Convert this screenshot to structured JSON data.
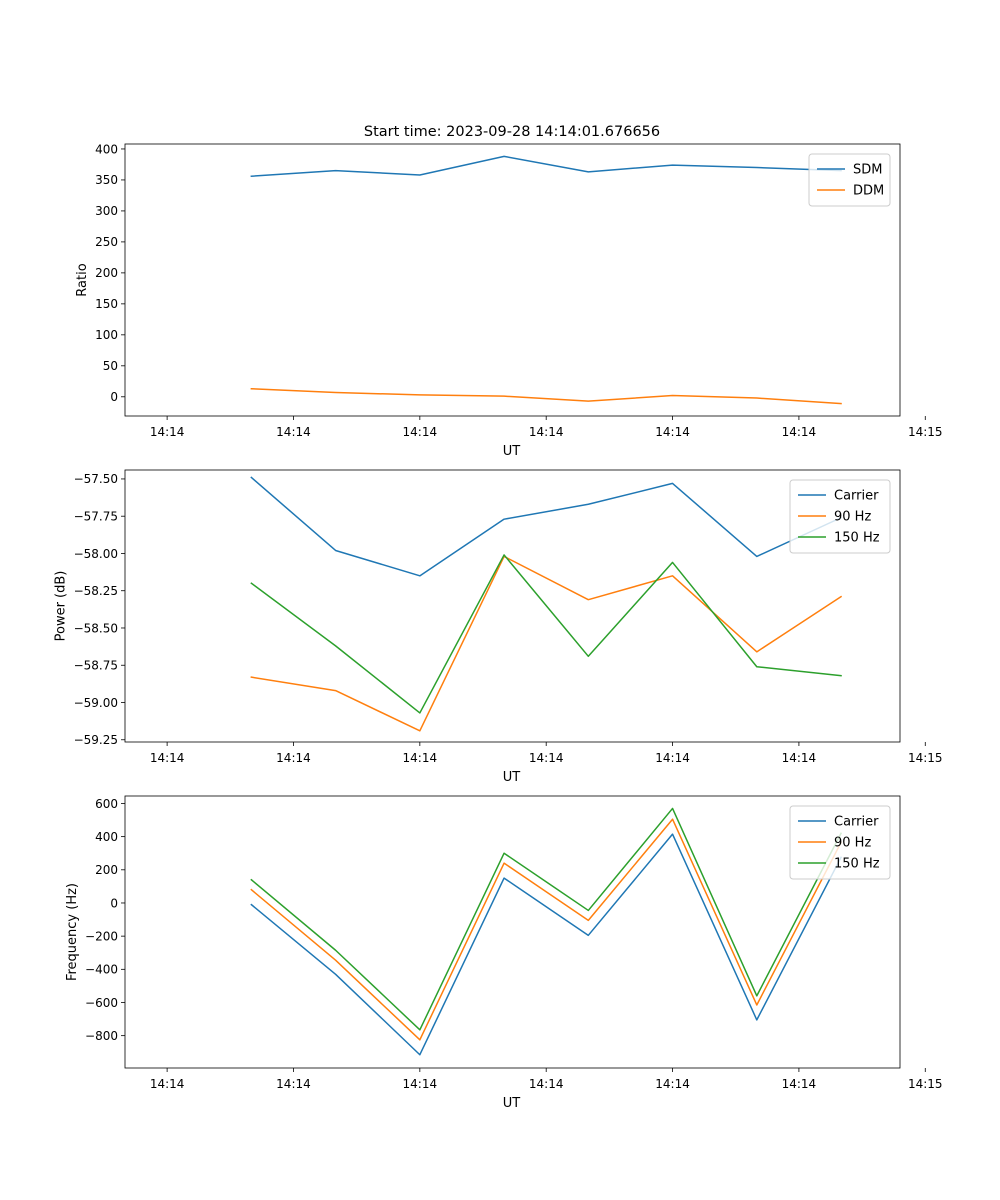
{
  "figure": {
    "title": "Start time: 2023-09-28 14:14:01.676656"
  },
  "chart_data": [
    {
      "type": "line",
      "title": "Start time: 2023-09-28 14:14:01.676656",
      "xlabel": "UT",
      "ylabel": "Ratio",
      "xlim": [
        -0.5,
        8.7
      ],
      "ylim": [
        -31,
        408
      ],
      "x": [
        1,
        2,
        3,
        4,
        5,
        6,
        7,
        8
      ],
      "x_ticks": [
        0,
        1.5,
        3,
        4.5,
        6,
        7.5,
        9
      ],
      "x_tick_labels": [
        "14:14",
        "14:14",
        "14:14",
        "14:14",
        "14:14",
        "14:14",
        "14:15"
      ],
      "y_ticks": [
        0,
        50,
        100,
        150,
        200,
        250,
        300,
        350,
        400
      ],
      "y_tick_labels": [
        "0",
        "50",
        "100",
        "150",
        "200",
        "250",
        "300",
        "350",
        "400"
      ],
      "legend": "top-right",
      "series": [
        {
          "name": "SDM",
          "color": "#1f77b4",
          "values": [
            356,
            365,
            358,
            388,
            363,
            374,
            370,
            365
          ]
        },
        {
          "name": "DDM",
          "color": "#ff7f0e",
          "values": [
            13,
            7,
            3,
            1,
            -7,
            2,
            -2,
            -11
          ]
        }
      ]
    },
    {
      "type": "line",
      "title": "",
      "xlabel": "UT",
      "ylabel": "Power (dB)",
      "xlim": [
        -0.5,
        8.7
      ],
      "ylim": [
        -59.265,
        -57.44
      ],
      "x": [
        1,
        2,
        3,
        4,
        5,
        6,
        7,
        8
      ],
      "x_ticks": [
        0,
        1.5,
        3,
        4.5,
        6,
        7.5,
        9
      ],
      "x_tick_labels": [
        "14:14",
        "14:14",
        "14:14",
        "14:14",
        "14:14",
        "14:14",
        "14:15"
      ],
      "y_ticks": [
        -57.5,
        -57.75,
        -58.0,
        -58.25,
        -58.5,
        -58.75,
        -59.0,
        -59.25
      ],
      "y_tick_labels": [
        "−57.50",
        "−57.75",
        "−58.00",
        "−58.25",
        "−58.50",
        "−58.75",
        "−59.00",
        "−59.25"
      ],
      "legend": "top-right",
      "series": [
        {
          "name": "Carrier",
          "color": "#1f77b4",
          "values": [
            -57.49,
            -57.98,
            -58.15,
            -57.77,
            -57.67,
            -57.53,
            -58.02,
            -57.76
          ]
        },
        {
          "name": "90 Hz",
          "color": "#ff7f0e",
          "values": [
            -58.83,
            -58.92,
            -59.19,
            -58.02,
            -58.31,
            -58.15,
            -58.66,
            -58.29
          ]
        },
        {
          "name": "150 Hz",
          "color": "#2ca02c",
          "values": [
            -58.2,
            -58.62,
            -59.07,
            -58.01,
            -58.69,
            -58.06,
            -58.76,
            -58.82
          ]
        }
      ]
    },
    {
      "type": "line",
      "title": "",
      "xlabel": "UT",
      "ylabel": "Frequency (Hz)",
      "xlim": [
        -0.5,
        8.7
      ],
      "ylim": [
        -995,
        645
      ],
      "x": [
        1,
        2,
        3,
        4,
        5,
        6,
        7,
        8
      ],
      "x_ticks": [
        0,
        1.5,
        3,
        4.5,
        6,
        7.5,
        9
      ],
      "x_tick_labels": [
        "14:14",
        "14:14",
        "14:14",
        "14:14",
        "14:14",
        "14:14",
        "14:15"
      ],
      "y_ticks": [
        600,
        400,
        200,
        0,
        -200,
        -400,
        -600,
        -800
      ],
      "y_tick_labels": [
        "600",
        "400",
        "200",
        "0",
        "−200",
        "−400",
        "−600",
        "−800"
      ],
      "legend": "top-right",
      "series": [
        {
          "name": "Carrier",
          "color": "#1f77b4",
          "values": [
            -10,
            -430,
            -915,
            150,
            -195,
            415,
            -705,
            275
          ]
        },
        {
          "name": "90 Hz",
          "color": "#ff7f0e",
          "values": [
            80,
            -345,
            -825,
            240,
            -105,
            505,
            -615,
            365
          ]
        },
        {
          "name": "150 Hz",
          "color": "#2ca02c",
          "values": [
            140,
            -285,
            -765,
            300,
            -45,
            570,
            -560,
            420
          ]
        }
      ]
    }
  ]
}
